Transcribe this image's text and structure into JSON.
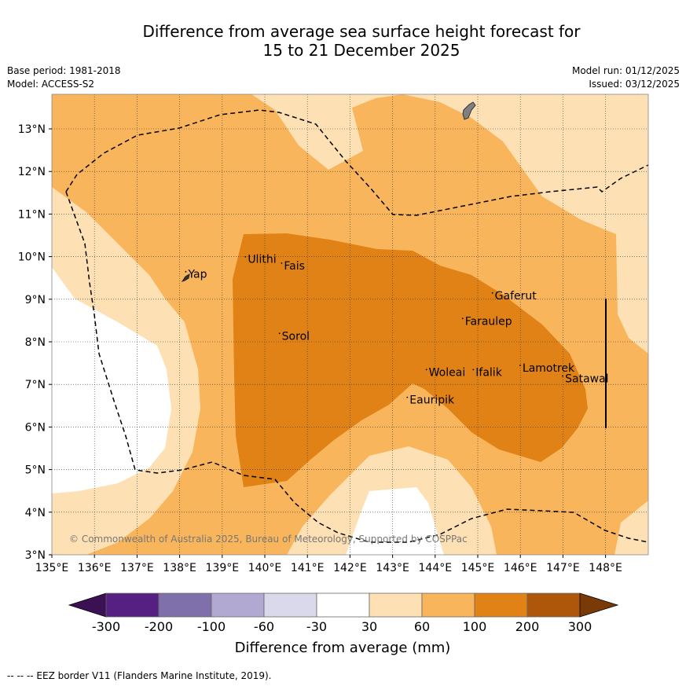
{
  "title": {
    "line1": "Difference from average sea surface height forecast for",
    "line2": "15 to 21 December 2025"
  },
  "meta": {
    "base_period": "Base period: 1981-2018",
    "model": "Model: ACCESS-S2",
    "model_run": "Model run: 01/12/2025",
    "issued": "Issued: 03/12/2025"
  },
  "map": {
    "lon_range": [
      135,
      149
    ],
    "lat_range": [
      3,
      13.8
    ],
    "lon_ticks": [
      "135°E",
      "136°E",
      "137°E",
      "138°E",
      "139°E",
      "140°E",
      "141°E",
      "142°E",
      "143°E",
      "144°E",
      "145°E",
      "146°E",
      "147°E",
      "148°E"
    ],
    "lat_ticks": [
      "3°N",
      "4°N",
      "5°N",
      "6°N",
      "7°N",
      "8°N",
      "9°N",
      "10°N",
      "11°N",
      "12°N",
      "13°N"
    ],
    "places": [
      {
        "name": "Yap",
        "lon": 138.2,
        "lat": 9.5
      },
      {
        "name": "Ulithi",
        "lon": 139.6,
        "lat": 9.85
      },
      {
        "name": "Fais",
        "lon": 140.45,
        "lat": 9.7
      },
      {
        "name": "Sorol",
        "lon": 140.4,
        "lat": 8.05
      },
      {
        "name": "Gaferut",
        "lon": 145.4,
        "lat": 9.0
      },
      {
        "name": "Faraulep",
        "lon": 144.7,
        "lat": 8.4
      },
      {
        "name": "Lamotrek",
        "lon": 146.05,
        "lat": 7.3
      },
      {
        "name": "Satawal",
        "lon": 147.05,
        "lat": 7.05
      },
      {
        "name": "Woleai",
        "lon": 143.85,
        "lat": 7.2
      },
      {
        "name": "Ifalik",
        "lon": 144.95,
        "lat": 7.2
      },
      {
        "name": "Eauripik",
        "lon": 143.4,
        "lat": 6.55
      }
    ],
    "copyright": "© Commonwealth of Australia 2025, Bureau of Meteorology, Supported by COSPPac"
  },
  "legend": {
    "labels": [
      "-300",
      "-200",
      "-100",
      "-60",
      "-30",
      "30",
      "60",
      "100",
      "200",
      "300"
    ],
    "colors": [
      "#3b1154",
      "#562083",
      "#7f70ab",
      "#b2a9d2",
      "#d9d9eb",
      "#ffffff",
      "#fde0b4",
      "#f9b55c",
      "#e08216",
      "#ae570a",
      "#7a3a08"
    ],
    "title": "Difference from average (mm)"
  },
  "footer": "--  --  -- EEZ border V11 (Flanders Marine Institute, 2019)."
}
